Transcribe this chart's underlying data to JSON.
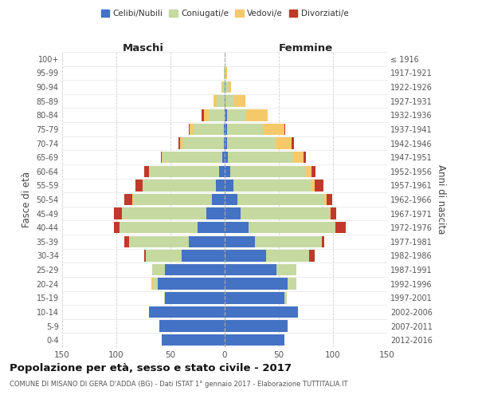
{
  "age_groups": [
    "0-4",
    "5-9",
    "10-14",
    "15-19",
    "20-24",
    "25-29",
    "30-34",
    "35-39",
    "40-44",
    "45-49",
    "50-54",
    "55-59",
    "60-64",
    "65-69",
    "70-74",
    "75-79",
    "80-84",
    "85-89",
    "90-94",
    "95-99",
    "100+"
  ],
  "birth_years": [
    "2012-2016",
    "2007-2011",
    "2002-2006",
    "1997-2001",
    "1992-1996",
    "1987-1991",
    "1982-1986",
    "1977-1981",
    "1972-1976",
    "1967-1971",
    "1962-1966",
    "1957-1961",
    "1952-1956",
    "1947-1951",
    "1942-1946",
    "1937-1941",
    "1932-1936",
    "1927-1931",
    "1922-1926",
    "1917-1921",
    "≤ 1916"
  ],
  "male_celibe": [
    58,
    60,
    70,
    55,
    62,
    55,
    40,
    33,
    25,
    17,
    12,
    8,
    5,
    2,
    1,
    1,
    0,
    0,
    0,
    0,
    0
  ],
  "male_coniugato": [
    0,
    0,
    0,
    1,
    4,
    12,
    33,
    55,
    72,
    78,
    72,
    68,
    65,
    55,
    38,
    28,
    15,
    7,
    2,
    1,
    0
  ],
  "male_vedovo": [
    0,
    0,
    0,
    0,
    2,
    0,
    0,
    0,
    0,
    0,
    1,
    0,
    0,
    1,
    2,
    3,
    4,
    3,
    1,
    0,
    0
  ],
  "male_divorziato": [
    0,
    0,
    0,
    0,
    0,
    0,
    1,
    5,
    5,
    7,
    8,
    6,
    4,
    1,
    2,
    1,
    2,
    0,
    0,
    0,
    0
  ],
  "female_celibe": [
    55,
    58,
    68,
    55,
    58,
    48,
    38,
    28,
    22,
    15,
    12,
    8,
    5,
    3,
    2,
    2,
    2,
    1,
    1,
    0,
    0
  ],
  "female_coniugato": [
    0,
    0,
    0,
    2,
    8,
    18,
    40,
    62,
    80,
    82,
    80,
    72,
    70,
    60,
    45,
    33,
    18,
    8,
    3,
    1,
    0
  ],
  "female_vedovo": [
    0,
    0,
    0,
    0,
    0,
    0,
    0,
    0,
    0,
    1,
    2,
    3,
    5,
    10,
    15,
    20,
    20,
    10,
    2,
    1,
    0
  ],
  "female_divorziato": [
    0,
    0,
    0,
    0,
    0,
    0,
    5,
    2,
    10,
    5,
    5,
    8,
    4,
    2,
    2,
    1,
    0,
    0,
    0,
    0,
    0
  ],
  "colors": {
    "celibe": "#4472c4",
    "coniugato": "#c5d9a0",
    "vedovo": "#f5c96a",
    "divorziato": "#c0392b"
  },
  "xlim": 150,
  "title": "Popolazione per età, sesso e stato civile - 2017",
  "subtitle": "COMUNE DI MISANO DI GERA D'ADDA (BG) - Dati ISTAT 1° gennaio 2017 - Elaborazione TUTTITALIA.IT",
  "ylabel_left": "Fasce di età",
  "ylabel_right": "Anni di nascita",
  "xlabel_left": "Maschi",
  "xlabel_right": "Femmine",
  "bg_color": "#ffffff",
  "grid_color": "#cccccc"
}
